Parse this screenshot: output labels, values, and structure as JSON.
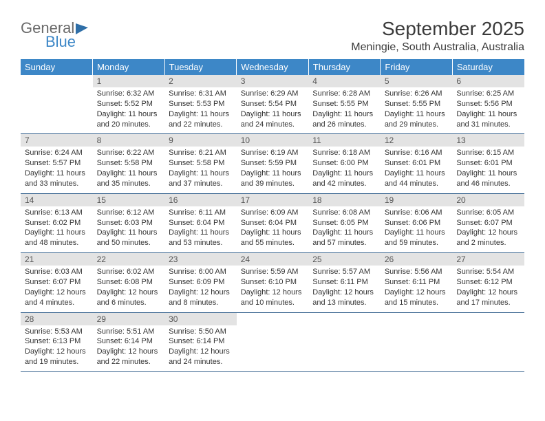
{
  "logo": {
    "general": "General",
    "blue": "Blue"
  },
  "title": "September 2025",
  "location": "Meningie, South Australia, Australia",
  "columns": [
    "Sunday",
    "Monday",
    "Tuesday",
    "Wednesday",
    "Thursday",
    "Friday",
    "Saturday"
  ],
  "colors": {
    "header_bg": "#3d87c7",
    "header_fg": "#ffffff",
    "daynum_bg": "#e3e3e3",
    "rule": "#2e5d8a",
    "logo_general": "#6a6a6a",
    "logo_blue": "#3d87c7"
  },
  "weeks": [
    [
      null,
      {
        "n": "1",
        "sr": "Sunrise: 6:32 AM",
        "ss": "Sunset: 5:52 PM",
        "d1": "Daylight: 11 hours",
        "d2": "and 20 minutes."
      },
      {
        "n": "2",
        "sr": "Sunrise: 6:31 AM",
        "ss": "Sunset: 5:53 PM",
        "d1": "Daylight: 11 hours",
        "d2": "and 22 minutes."
      },
      {
        "n": "3",
        "sr": "Sunrise: 6:29 AM",
        "ss": "Sunset: 5:54 PM",
        "d1": "Daylight: 11 hours",
        "d2": "and 24 minutes."
      },
      {
        "n": "4",
        "sr": "Sunrise: 6:28 AM",
        "ss": "Sunset: 5:55 PM",
        "d1": "Daylight: 11 hours",
        "d2": "and 26 minutes."
      },
      {
        "n": "5",
        "sr": "Sunrise: 6:26 AM",
        "ss": "Sunset: 5:55 PM",
        "d1": "Daylight: 11 hours",
        "d2": "and 29 minutes."
      },
      {
        "n": "6",
        "sr": "Sunrise: 6:25 AM",
        "ss": "Sunset: 5:56 PM",
        "d1": "Daylight: 11 hours",
        "d2": "and 31 minutes."
      }
    ],
    [
      {
        "n": "7",
        "sr": "Sunrise: 6:24 AM",
        "ss": "Sunset: 5:57 PM",
        "d1": "Daylight: 11 hours",
        "d2": "and 33 minutes."
      },
      {
        "n": "8",
        "sr": "Sunrise: 6:22 AM",
        "ss": "Sunset: 5:58 PM",
        "d1": "Daylight: 11 hours",
        "d2": "and 35 minutes."
      },
      {
        "n": "9",
        "sr": "Sunrise: 6:21 AM",
        "ss": "Sunset: 5:58 PM",
        "d1": "Daylight: 11 hours",
        "d2": "and 37 minutes."
      },
      {
        "n": "10",
        "sr": "Sunrise: 6:19 AM",
        "ss": "Sunset: 5:59 PM",
        "d1": "Daylight: 11 hours",
        "d2": "and 39 minutes."
      },
      {
        "n": "11",
        "sr": "Sunrise: 6:18 AM",
        "ss": "Sunset: 6:00 PM",
        "d1": "Daylight: 11 hours",
        "d2": "and 42 minutes."
      },
      {
        "n": "12",
        "sr": "Sunrise: 6:16 AM",
        "ss": "Sunset: 6:01 PM",
        "d1": "Daylight: 11 hours",
        "d2": "and 44 minutes."
      },
      {
        "n": "13",
        "sr": "Sunrise: 6:15 AM",
        "ss": "Sunset: 6:01 PM",
        "d1": "Daylight: 11 hours",
        "d2": "and 46 minutes."
      }
    ],
    [
      {
        "n": "14",
        "sr": "Sunrise: 6:13 AM",
        "ss": "Sunset: 6:02 PM",
        "d1": "Daylight: 11 hours",
        "d2": "and 48 minutes."
      },
      {
        "n": "15",
        "sr": "Sunrise: 6:12 AM",
        "ss": "Sunset: 6:03 PM",
        "d1": "Daylight: 11 hours",
        "d2": "and 50 minutes."
      },
      {
        "n": "16",
        "sr": "Sunrise: 6:11 AM",
        "ss": "Sunset: 6:04 PM",
        "d1": "Daylight: 11 hours",
        "d2": "and 53 minutes."
      },
      {
        "n": "17",
        "sr": "Sunrise: 6:09 AM",
        "ss": "Sunset: 6:04 PM",
        "d1": "Daylight: 11 hours",
        "d2": "and 55 minutes."
      },
      {
        "n": "18",
        "sr": "Sunrise: 6:08 AM",
        "ss": "Sunset: 6:05 PM",
        "d1": "Daylight: 11 hours",
        "d2": "and 57 minutes."
      },
      {
        "n": "19",
        "sr": "Sunrise: 6:06 AM",
        "ss": "Sunset: 6:06 PM",
        "d1": "Daylight: 11 hours",
        "d2": "and 59 minutes."
      },
      {
        "n": "20",
        "sr": "Sunrise: 6:05 AM",
        "ss": "Sunset: 6:07 PM",
        "d1": "Daylight: 12 hours",
        "d2": "and 2 minutes."
      }
    ],
    [
      {
        "n": "21",
        "sr": "Sunrise: 6:03 AM",
        "ss": "Sunset: 6:07 PM",
        "d1": "Daylight: 12 hours",
        "d2": "and 4 minutes."
      },
      {
        "n": "22",
        "sr": "Sunrise: 6:02 AM",
        "ss": "Sunset: 6:08 PM",
        "d1": "Daylight: 12 hours",
        "d2": "and 6 minutes."
      },
      {
        "n": "23",
        "sr": "Sunrise: 6:00 AM",
        "ss": "Sunset: 6:09 PM",
        "d1": "Daylight: 12 hours",
        "d2": "and 8 minutes."
      },
      {
        "n": "24",
        "sr": "Sunrise: 5:59 AM",
        "ss": "Sunset: 6:10 PM",
        "d1": "Daylight: 12 hours",
        "d2": "and 10 minutes."
      },
      {
        "n": "25",
        "sr": "Sunrise: 5:57 AM",
        "ss": "Sunset: 6:11 PM",
        "d1": "Daylight: 12 hours",
        "d2": "and 13 minutes."
      },
      {
        "n": "26",
        "sr": "Sunrise: 5:56 AM",
        "ss": "Sunset: 6:11 PM",
        "d1": "Daylight: 12 hours",
        "d2": "and 15 minutes."
      },
      {
        "n": "27",
        "sr": "Sunrise: 5:54 AM",
        "ss": "Sunset: 6:12 PM",
        "d1": "Daylight: 12 hours",
        "d2": "and 17 minutes."
      }
    ],
    [
      {
        "n": "28",
        "sr": "Sunrise: 5:53 AM",
        "ss": "Sunset: 6:13 PM",
        "d1": "Daylight: 12 hours",
        "d2": "and 19 minutes."
      },
      {
        "n": "29",
        "sr": "Sunrise: 5:51 AM",
        "ss": "Sunset: 6:14 PM",
        "d1": "Daylight: 12 hours",
        "d2": "and 22 minutes."
      },
      {
        "n": "30",
        "sr": "Sunrise: 5:50 AM",
        "ss": "Sunset: 6:14 PM",
        "d1": "Daylight: 12 hours",
        "d2": "and 24 minutes."
      },
      null,
      null,
      null,
      null
    ]
  ]
}
